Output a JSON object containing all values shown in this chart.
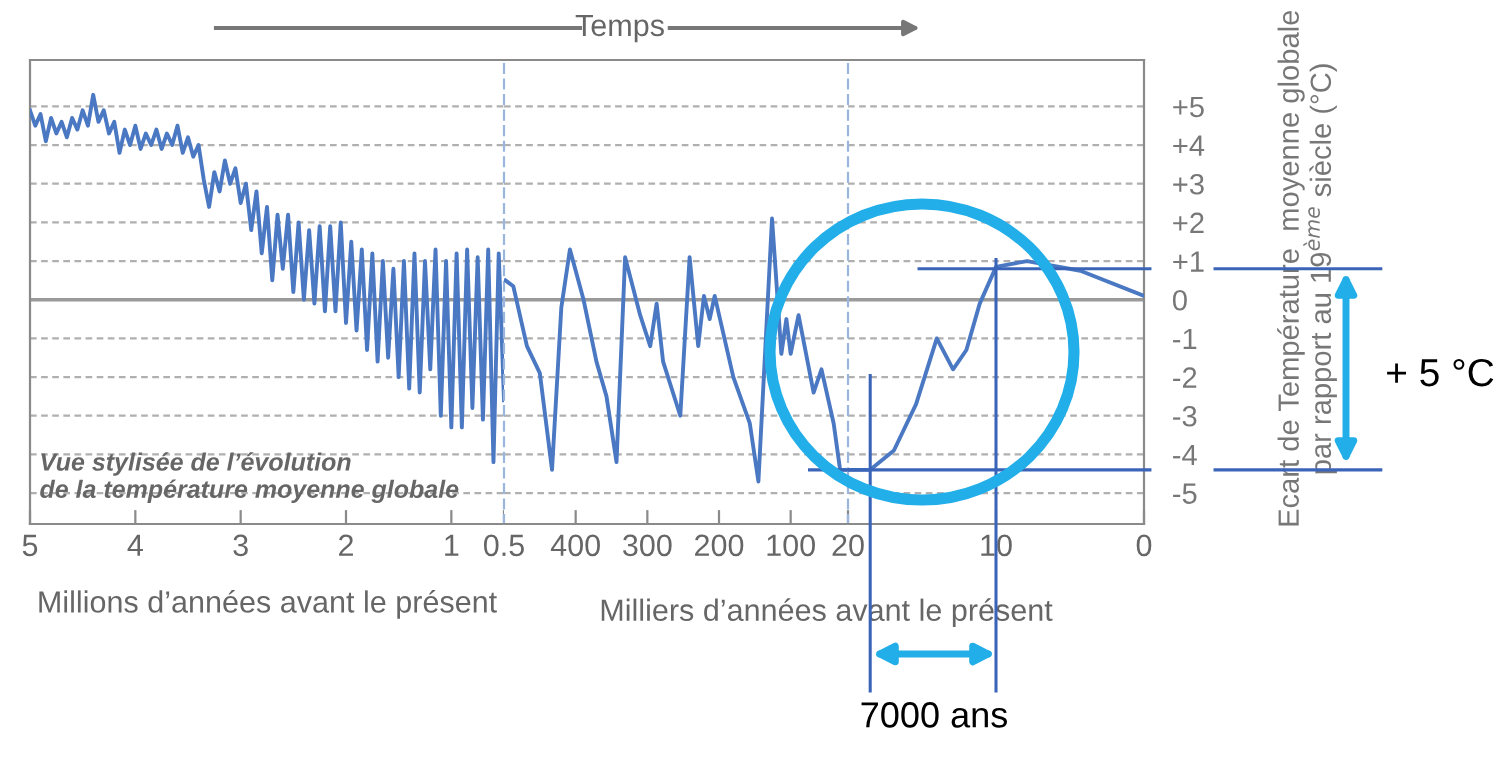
{
  "chart_data": [
    {
      "type": "line",
      "xlabel": "Millions d’années avant le présent",
      "annotations": [
        "Vue stylisée de l’évolution\nde la température moyenne globale"
      ],
      "x": [
        5.0,
        4.95,
        4.9,
        4.85,
        4.8,
        4.75,
        4.7,
        4.65,
        4.6,
        4.55,
        4.5,
        4.45,
        4.4,
        4.35,
        4.3,
        4.25,
        4.2,
        4.15,
        4.1,
        4.05,
        4.0,
        3.95,
        3.9,
        3.85,
        3.8,
        3.75,
        3.7,
        3.65,
        3.6,
        3.55,
        3.5,
        3.45,
        3.4,
        3.35,
        3.3,
        3.25,
        3.2,
        3.15,
        3.1,
        3.05,
        3.0,
        2.95,
        2.9,
        2.85,
        2.8,
        2.75,
        2.7,
        2.65,
        2.6,
        2.55,
        2.5,
        2.45,
        2.4,
        2.35,
        2.3,
        2.25,
        2.2,
        2.15,
        2.1,
        2.05,
        2.0,
        1.95,
        1.9,
        1.85,
        1.8,
        1.75,
        1.7,
        1.65,
        1.6,
        1.55,
        1.5,
        1.45,
        1.4,
        1.35,
        1.3,
        1.25,
        1.2,
        1.15,
        1.1,
        1.05,
        1.0,
        0.95,
        0.9,
        0.85,
        0.8,
        0.75,
        0.7,
        0.65,
        0.6,
        0.55,
        0.5
      ],
      "series": [
        {
          "color": "#4a78c2",
          "values": [
            4.9,
            4.5,
            4.8,
            4.1,
            4.7,
            4.3,
            4.6,
            4.2,
            4.7,
            4.4,
            4.9,
            4.5,
            5.3,
            4.6,
            4.9,
            4.3,
            4.6,
            3.8,
            4.4,
            4.0,
            4.5,
            3.9,
            4.3,
            4.0,
            4.4,
            3.9,
            4.3,
            4.0,
            4.5,
            3.8,
            4.2,
            3.7,
            4.0,
            3.1,
            2.4,
            3.3,
            2.8,
            3.6,
            3.0,
            3.4,
            2.5,
            3.0,
            1.8,
            2.8,
            1.2,
            2.4,
            0.5,
            2.2,
            0.8,
            2.2,
            0.2,
            2.0,
            0.0,
            1.8,
            -0.1,
            1.9,
            -0.3,
            1.9,
            -0.3,
            2.0,
            -0.6,
            1.5,
            -0.8,
            1.3,
            -1.3,
            1.2,
            -1.6,
            1.0,
            -1.5,
            0.8,
            -2.0,
            1.0,
            -2.3,
            1.2,
            -2.4,
            1.0,
            -1.8,
            1.3,
            -3.0,
            1.0,
            -3.3,
            1.2,
            -3.3,
            1.3,
            -2.8,
            1.1,
            -3.1,
            1.3,
            -4.2,
            1.2,
            -2.6
          ]
        }
      ],
      "xlim": [
        5,
        0.5
      ],
      "xticks": [
        5,
        4,
        3,
        2,
        1,
        0.5
      ],
      "ylim": [
        -5.8,
        6.2
      ],
      "yticks": [
        -5,
        -4,
        -3,
        -2,
        -1,
        0,
        1,
        2,
        3,
        4,
        5
      ],
      "tick_labels": "x",
      "grid": "y",
      "ref_lines": [
        {
          "axis": "y",
          "value": 0,
          "color": "#9a9a9a"
        }
      ]
    },
    {
      "type": "line",
      "xlabel": "Milliers d’années avant le présent",
      "annotations": [
        "Temps"
      ],
      "x": [
        498,
        487,
        468,
        450,
        433,
        420,
        408,
        389,
        371,
        357,
        343,
        331,
        310,
        296,
        287,
        278,
        254,
        241,
        229,
        221,
        213,
        206,
        180,
        157,
        145,
        126,
        113,
        106,
        100,
        89,
        68,
        57,
        40,
        31,
        20
      ],
      "series": [
        {
          "color": "#4a78c2",
          "values": [
            0.5,
            0.35,
            -1.2,
            -1.9,
            -4.4,
            -0.2,
            1.3,
            0.0,
            -1.6,
            -2.5,
            -4.2,
            1.1,
            -0.4,
            -1.2,
            -0.1,
            -1.6,
            -3.0,
            1.1,
            -1.2,
            0.1,
            -0.5,
            0.1,
            -2.0,
            -3.2,
            -4.7,
            2.1,
            -1.4,
            -0.5,
            -1.4,
            -0.4,
            -2.4,
            -1.8,
            -3.2,
            -4.4,
            -4.4
          ]
        }
      ],
      "xlim": [
        500,
        20
      ],
      "xticks": [
        400,
        300,
        200,
        100
      ],
      "ylim": [
        -5.8,
        6.2
      ],
      "yticks": [
        -5,
        -4,
        -3,
        -2,
        -1,
        0,
        1,
        2,
        3,
        4,
        5
      ],
      "tick_labels": "x",
      "grid": "y",
      "ref_lines": [
        {
          "axis": "y",
          "value": 0,
          "color": "#9a9a9a"
        }
      ]
    },
    {
      "type": "line",
      "ylabel": "Ecart de Température  moyenne globale\npar rapport au 19$^{ème}$ siècle (°C)",
      "annotations": [
        "+ 5 °C",
        "7000 ans"
      ],
      "x": [
        20,
        18.5,
        16.9,
        15.4,
        14.0,
        12.9,
        12.0,
        11.1,
        10.0,
        7.9,
        4.3,
        0
      ],
      "series": [
        {
          "color": "#4a78c2",
          "values": [
            -4.4,
            -4.4,
            -3.9,
            -2.7,
            -1.0,
            -1.8,
            -1.3,
            -0.1,
            0.85,
            1.0,
            0.75,
            0.1
          ]
        }
      ],
      "xlim": [
        20,
        0
      ],
      "xticks": [
        20,
        10,
        0
      ],
      "ylim": [
        -5.8,
        6.2
      ],
      "yticks": [
        {
          "value": -5,
          "label": "-5"
        },
        {
          "value": -4,
          "label": "-4"
        },
        {
          "value": -3,
          "label": "-3"
        },
        {
          "value": -2,
          "label": "-2"
        },
        {
          "value": -1,
          "label": "-1"
        },
        0,
        {
          "value": 1,
          "label": "+1"
        },
        {
          "value": 2,
          "label": "+2"
        },
        {
          "value": 3,
          "label": "+3"
        },
        {
          "value": 4,
          "label": "+4"
        },
        {
          "value": 5,
          "label": "+5"
        }
      ],
      "grid": "y",
      "ref_lines": [
        {
          "axis": "y",
          "value": 0,
          "color": "#9a9a9a"
        },
        {
          "axis": "y",
          "value": 0.8,
          "color": "#3a64b8"
        },
        {
          "axis": "y",
          "value": -4.4,
          "color": "#3a64b8"
        },
        {
          "axis": "x",
          "value": 18.5,
          "color": "#3a64b8"
        },
        {
          "axis": "x",
          "value": 10,
          "color": "#3a64b8"
        }
      ]
    }
  ]
}
